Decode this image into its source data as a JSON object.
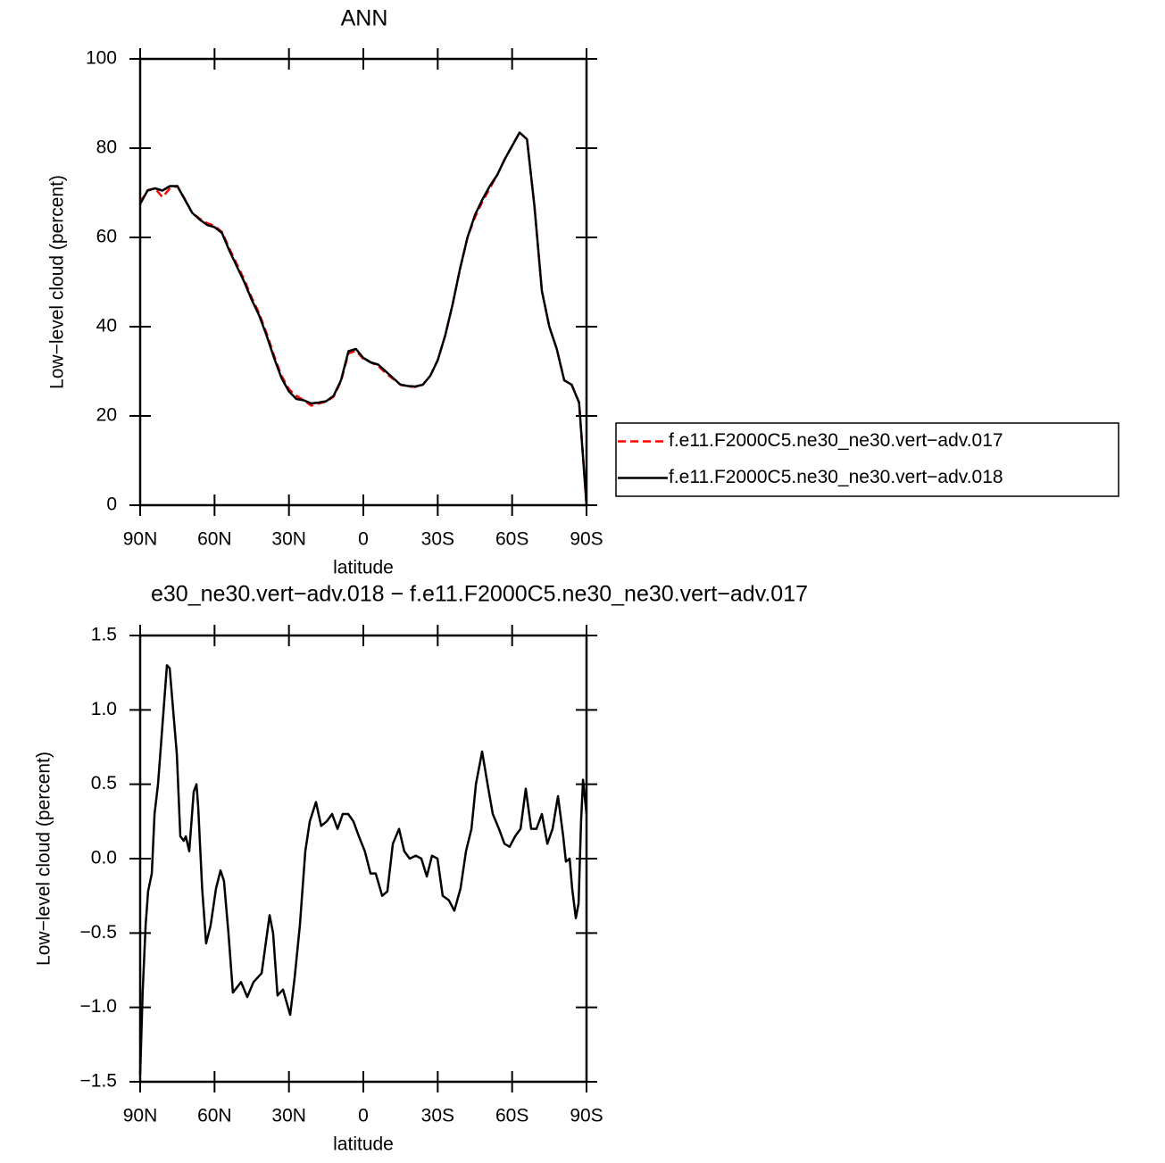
{
  "chart_data": [
    {
      "type": "line",
      "title": "ANN",
      "xlabel": "latitude",
      "ylabel": "Low−level cloud (percent)",
      "x": [
        90,
        87,
        84,
        81,
        78,
        75,
        72,
        69,
        66,
        63,
        60,
        57,
        54,
        51,
        48,
        45,
        42,
        39,
        36,
        33,
        30,
        27,
        24,
        21,
        18,
        15,
        12,
        9,
        6,
        3,
        0,
        -3,
        -6,
        -9,
        -12,
        -15,
        -18,
        -21,
        -24,
        -27,
        -30,
        -33,
        -36,
        -39,
        -42,
        -45,
        -48,
        -51,
        -54,
        -57,
        -60,
        -63,
        -66,
        -69,
        -72,
        -75,
        -78,
        -81,
        -84,
        -87,
        -90
      ],
      "series": [
        {
          "name": "f.e11.F2000C5.ne30_ne30.vert−adv.017",
          "color": "#ff0000",
          "style": "dashed",
          "values": [
            67.8,
            70.6,
            71,
            69,
            71,
            71.5,
            68.6,
            65.5,
            64.2,
            63.2,
            62.6,
            61.2,
            57.5,
            54,
            50.5,
            46.5,
            43,
            38.5,
            33.5,
            29,
            26,
            24.5,
            23.5,
            22.3,
            22.8,
            23.2,
            24.3,
            27.8,
            34,
            34.6,
            32.8,
            32,
            31.2,
            29.6,
            28.3,
            27,
            26.6,
            26.5,
            27,
            29,
            32.5,
            38,
            45,
            53,
            60,
            64.5,
            68,
            71,
            74,
            77.5,
            80.5,
            83.5,
            82,
            67,
            48,
            40,
            35,
            28,
            27,
            23,
            0
          ]
        },
        {
          "name": "f.e11.F2000C5.ne30_ne30.vert−adv.018",
          "color": "#000000",
          "style": "solid",
          "values": [
            67.5,
            70.5,
            71,
            70.5,
            71.5,
            71.5,
            68.5,
            65.5,
            64,
            62.8,
            62.3,
            61,
            57,
            53.5,
            50,
            46,
            42.5,
            38,
            33,
            28.5,
            25.5,
            23.8,
            23.5,
            22.8,
            23,
            23.3,
            24.5,
            28,
            34.5,
            35,
            33,
            32,
            31.5,
            30,
            28.5,
            27,
            26.7,
            26.6,
            27,
            29,
            32.5,
            38,
            45,
            53,
            60,
            65,
            68.5,
            71.5,
            74,
            77.5,
            80.5,
            83.5,
            82,
            67,
            48,
            40,
            35,
            28,
            27,
            23,
            0
          ]
        }
      ],
      "xlim": [
        90,
        -90
      ],
      "xticks": [
        {
          "value": 90,
          "label": "90N"
        },
        {
          "value": 60,
          "label": "60N"
        },
        {
          "value": 30,
          "label": "30N"
        },
        0,
        {
          "value": -30,
          "label": "30S"
        },
        {
          "value": -60,
          "label": "60S"
        },
        {
          "value": -90,
          "label": "90S"
        }
      ],
      "ylim": [
        0,
        100
      ],
      "yticks": [
        0,
        20,
        40,
        60,
        80,
        100
      ],
      "legend": "right"
    },
    {
      "type": "line",
      "title": "e30_ne30.vert−adv.018 − f.e11.F2000C5.ne30_ne30.vert−adv.017",
      "xlabel": "latitude",
      "ylabel": "Low−level cloud (percent)",
      "x": [
        90,
        89,
        87.8,
        86.8,
        85.3,
        84.2,
        82.8,
        81,
        79.2,
        78.1,
        76.7,
        75.2,
        73.8,
        72.4,
        71.6,
        70.2,
        68.4,
        67.3,
        66.6,
        65,
        63.4,
        61.6,
        59.4,
        57.6,
        56.2,
        54.4,
        52.6,
        49.3,
        46.8,
        44.3,
        41,
        37.8,
        36.4,
        34.6,
        32.4,
        29.5,
        27.7,
        25.6,
        23.4,
        21.6,
        19.1,
        17,
        14.8,
        12.6,
        10.4,
        8.3,
        6.1,
        4,
        1.8,
        -0.6,
        -2.9,
        -5,
        -7.6,
        -9.7,
        -11.9,
        -14.4,
        -16.5,
        -18.7,
        -21.2,
        -23.4,
        -25.6,
        -27.7,
        -29.9,
        -32,
        -34.5,
        -36.7,
        -39.2,
        -41.4,
        -43.6,
        -45.4,
        -47.9,
        -50.1,
        -52.2,
        -54.7,
        -56.9,
        -59,
        -61.2,
        -63.4,
        -65.5,
        -67.7,
        -69.8,
        -72,
        -74.2,
        -76.3,
        -78.5,
        -80.6,
        -81.7,
        -83.2,
        -84.2,
        -85.7,
        -86.8,
        -87.8,
        -88.6,
        -90
      ],
      "series": [
        {
          "color": "#000000",
          "style": "solid",
          "values": [
            -1.45,
            -0.9,
            -0.45,
            -0.22,
            -0.1,
            0.3,
            0.5,
            0.9,
            1.3,
            1.28,
            1.0,
            0.7,
            0.15,
            0.12,
            0.15,
            0.05,
            0.45,
            0.5,
            0.35,
            -0.2,
            -0.57,
            -0.45,
            -0.2,
            -0.08,
            -0.15,
            -0.5,
            -0.9,
            -0.83,
            -0.93,
            -0.83,
            -0.77,
            -0.38,
            -0.5,
            -0.92,
            -0.88,
            -1.05,
            -0.8,
            -0.45,
            0.05,
            0.25,
            0.38,
            0.22,
            0.25,
            0.3,
            0.2,
            0.3,
            0.3,
            0.25,
            0.15,
            0.05,
            -0.1,
            -0.1,
            -0.25,
            -0.22,
            0.1,
            0.2,
            0.05,
            0.0,
            0.02,
            0.0,
            -0.12,
            0.02,
            0.0,
            -0.25,
            -0.28,
            -0.35,
            -0.2,
            0.05,
            0.2,
            0.5,
            0.72,
            0.5,
            0.3,
            0.2,
            0.1,
            0.08,
            0.15,
            0.2,
            0.47,
            0.2,
            0.2,
            0.3,
            0.1,
            0.2,
            0.42,
            0.15,
            -0.02,
            0.0,
            -0.2,
            -0.4,
            -0.3,
            0.25,
            0.53,
            0.3
          ]
        }
      ],
      "xlim": [
        90,
        -90
      ],
      "xticks": [
        {
          "value": 90,
          "label": "90N"
        },
        {
          "value": 60,
          "label": "60N"
        },
        {
          "value": 30,
          "label": "30N"
        },
        0,
        {
          "value": -30,
          "label": "30S"
        },
        {
          "value": -60,
          "label": "60S"
        },
        {
          "value": -90,
          "label": "90S"
        }
      ],
      "ylim": [
        -1.5,
        1.5
      ],
      "yticks": [
        {
          "value": -1.5,
          "label": "−1.5"
        },
        {
          "value": -1,
          "label": "−1.0"
        },
        {
          "value": -0.5,
          "label": "−0.5"
        },
        {
          "value": 0,
          "label": "0.0"
        },
        {
          "value": 0.5,
          "label": "0.5"
        },
        {
          "value": 1,
          "label": "1.0"
        },
        1.5
      ]
    }
  ]
}
